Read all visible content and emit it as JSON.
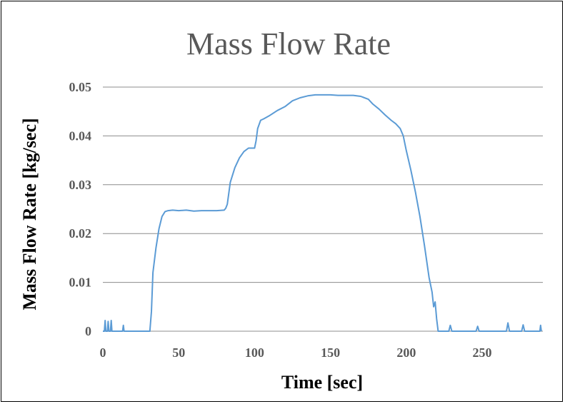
{
  "chart_data": {
    "type": "line",
    "title": "Mass Flow Rate",
    "xlabel": "Time [sec]",
    "ylabel": "Mass Flow Rate [kg/sec]",
    "xlim": [
      0,
      290
    ],
    "ylim": [
      0,
      0.05
    ],
    "x_ticks": [
      "0",
      "50",
      "100",
      "150",
      "200",
      "250"
    ],
    "x_tick_values": [
      0,
      50,
      100,
      150,
      200,
      250
    ],
    "y_ticks": [
      "0",
      "0.01",
      "0.02",
      "0.03",
      "0.04",
      "0.05"
    ],
    "y_tick_values": [
      0,
      0.01,
      0.02,
      0.03,
      0.04,
      0.05
    ],
    "grid": "horizontal",
    "legend": "none",
    "series_color": "#5b9bd5",
    "series": [
      {
        "x": [
          0,
          1,
          1.5,
          2,
          3,
          3.5,
          4,
          5,
          5.5,
          6,
          12,
          13,
          13.5,
          14,
          31,
          32,
          33,
          35,
          37,
          39,
          41,
          43,
          46,
          50,
          55,
          60,
          65,
          70,
          75,
          80,
          81,
          82,
          84,
          87,
          90,
          93,
          96,
          100,
          101,
          102,
          104,
          106,
          110,
          115,
          120,
          125,
          130,
          135,
          140,
          145,
          150,
          155,
          160,
          165,
          170,
          175,
          178,
          182,
          186,
          190,
          193,
          196,
          198,
          200,
          203,
          206,
          209,
          212,
          215,
          217,
          218,
          219,
          220,
          221,
          222,
          228,
          229,
          230,
          246,
          247,
          248,
          266,
          267,
          268,
          276,
          277,
          278,
          288,
          288.5,
          289
        ],
        "values": [
          0,
          0,
          0.0022,
          0,
          0,
          0.002,
          0,
          0,
          0.0022,
          0,
          0,
          0,
          0.0012,
          0,
          0,
          0.004,
          0.012,
          0.017,
          0.021,
          0.0235,
          0.0245,
          0.0247,
          0.0248,
          0.0247,
          0.0248,
          0.0246,
          0.0247,
          0.0247,
          0.0247,
          0.0248,
          0.0252,
          0.026,
          0.0305,
          0.0335,
          0.0355,
          0.0368,
          0.0375,
          0.0375,
          0.039,
          0.0415,
          0.0432,
          0.0435,
          0.0442,
          0.0452,
          0.046,
          0.0472,
          0.0478,
          0.0482,
          0.0484,
          0.0484,
          0.0484,
          0.0483,
          0.0483,
          0.0483,
          0.0481,
          0.0475,
          0.0465,
          0.0455,
          0.0443,
          0.0432,
          0.0425,
          0.0415,
          0.04,
          0.037,
          0.033,
          0.0285,
          0.0235,
          0.0175,
          0.011,
          0.008,
          0.005,
          0.006,
          0.0025,
          0,
          0,
          0,
          0.0012,
          0,
          0,
          0.001,
          0,
          0,
          0.0017,
          0,
          0,
          0.0013,
          0,
          0,
          0.0012,
          0
        ]
      }
    ]
  }
}
